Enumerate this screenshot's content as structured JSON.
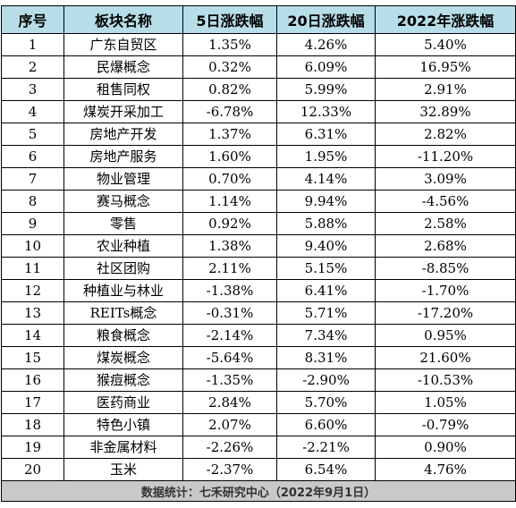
{
  "table": {
    "headers": [
      "序号",
      "板块名称",
      "5日涨跌幅",
      "20日涨跌幅",
      "2022年涨跌幅"
    ],
    "rows": [
      [
        "1",
        "广东自贸区",
        "1.35%",
        "4.26%",
        "5.40%"
      ],
      [
        "2",
        "民爆概念",
        "0.32%",
        "6.09%",
        "16.95%"
      ],
      [
        "3",
        "租售同权",
        "0.82%",
        "5.99%",
        "2.91%"
      ],
      [
        "4",
        "煤炭开采加工",
        "-6.78%",
        "12.33%",
        "32.89%"
      ],
      [
        "5",
        "房地产开发",
        "1.37%",
        "6.31%",
        "2.82%"
      ],
      [
        "6",
        "房地产服务",
        "1.60%",
        "1.95%",
        "-11.20%"
      ],
      [
        "7",
        "物业管理",
        "0.70%",
        "4.14%",
        "3.09%"
      ],
      [
        "8",
        "赛马概念",
        "1.14%",
        "9.94%",
        "-4.56%"
      ],
      [
        "9",
        "零售",
        "0.92%",
        "5.88%",
        "2.58%"
      ],
      [
        "10",
        "农业种植",
        "1.38%",
        "9.40%",
        "2.68%"
      ],
      [
        "11",
        "社区团购",
        "2.11%",
        "5.15%",
        "-8.85%"
      ],
      [
        "12",
        "种植业与林业",
        "-1.38%",
        "6.41%",
        "-1.70%"
      ],
      [
        "13",
        "REITs概念",
        "-0.31%",
        "5.71%",
        "-17.20%"
      ],
      [
        "14",
        "粮食概念",
        "-2.14%",
        "7.34%",
        "0.95%"
      ],
      [
        "15",
        "煤炭概念",
        "-5.64%",
        "8.31%",
        "21.60%"
      ],
      [
        "16",
        "猴痘概念",
        "-1.35%",
        "-2.90%",
        "-10.53%"
      ],
      [
        "17",
        "医药商业",
        "2.84%",
        "5.70%",
        "1.05%"
      ],
      [
        "18",
        "特色小镇",
        "2.07%",
        "6.60%",
        "-0.79%"
      ],
      [
        "19",
        "非金属材料",
        "-2.26%",
        "-2.21%",
        "0.90%"
      ],
      [
        "20",
        "玉米",
        "-2.37%",
        "6.54%",
        "4.76%"
      ]
    ],
    "footer": "数据统计：七禾研究中心（2022年9月1日）"
  }
}
